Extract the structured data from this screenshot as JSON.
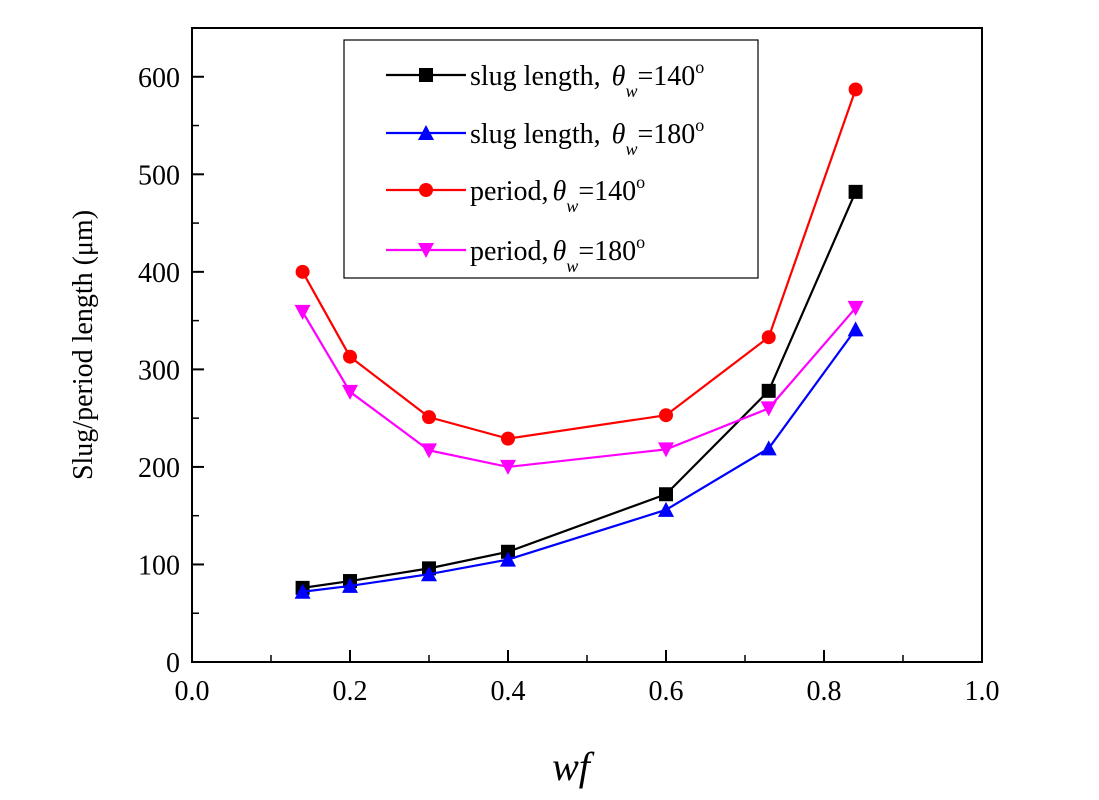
{
  "chart_data": {
    "type": "line",
    "xlabel": "wf",
    "ylabel": "Slug/period length (μm)",
    "xlim": [
      0.0,
      1.0
    ],
    "ylim": [
      0,
      650
    ],
    "x_ticks": [
      "0.0",
      "0.2",
      "0.4",
      "0.6",
      "0.8",
      "1.0"
    ],
    "y_ticks": [
      "0",
      "100",
      "200",
      "300",
      "400",
      "500",
      "600"
    ],
    "legend_position": "top-center",
    "grid": false,
    "series": [
      {
        "name": "slug length, θw=140°",
        "label_parts": {
          "prefix": "slug length, ",
          "symbol": "θ",
          "sub": "w",
          "value": "=140",
          "sup": "o"
        },
        "color": "#000000",
        "marker": "square",
        "x": [
          0.14,
          0.2,
          0.3,
          0.4,
          0.6,
          0.73,
          0.84
        ],
        "y": [
          76,
          83,
          96,
          113,
          172,
          278,
          482
        ]
      },
      {
        "name": "slug length, θw=180°",
        "label_parts": {
          "prefix": "slug length, ",
          "symbol": "θ",
          "sub": "w",
          "value": "=180",
          "sup": "o"
        },
        "color": "#0000ff",
        "marker": "triangle-up",
        "x": [
          0.14,
          0.2,
          0.3,
          0.4,
          0.6,
          0.73,
          0.84
        ],
        "y": [
          72,
          78,
          90,
          105,
          156,
          219,
          341
        ]
      },
      {
        "name": "period,θw=140°",
        "label_parts": {
          "prefix": "period,",
          "symbol": "θ",
          "sub": "w",
          "value": "=140",
          "sup": "o"
        },
        "color": "#ff0000",
        "marker": "circle",
        "x": [
          0.14,
          0.2,
          0.3,
          0.4,
          0.6,
          0.73,
          0.84
        ],
        "y": [
          400,
          313,
          251,
          229,
          253,
          333,
          587
        ]
      },
      {
        "name": "period,θw=180°",
        "label_parts": {
          "prefix": "period,",
          "symbol": "θ",
          "sub": "w",
          "value": "=180",
          "sup": "o"
        },
        "color": "#ff00ff",
        "marker": "triangle-down",
        "x": [
          0.14,
          0.2,
          0.3,
          0.4,
          0.6,
          0.73,
          0.84
        ],
        "y": [
          359,
          277,
          217,
          200,
          218,
          260,
          363
        ]
      }
    ]
  }
}
